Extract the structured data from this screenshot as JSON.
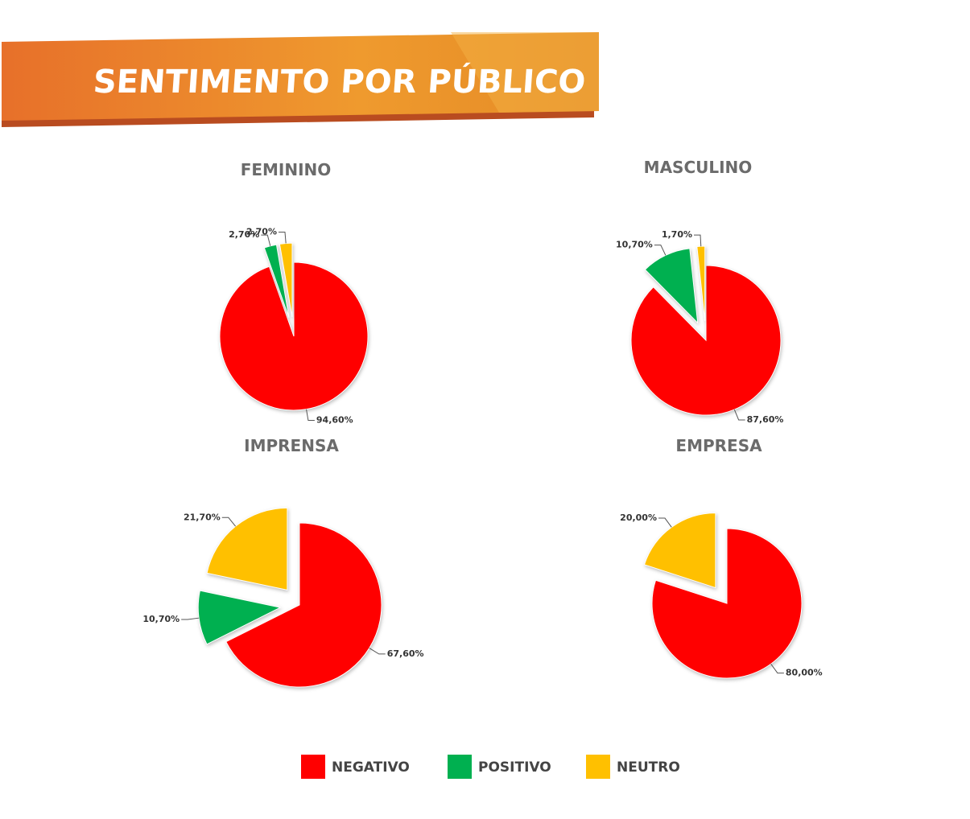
{
  "title": "SENTIMENTO POR PÚBLICO",
  "chart_data": [
    {
      "type": "pie",
      "title": "FEMININO",
      "categories": [
        "NEGATIVO",
        "POSITIVO",
        "NEUTRO"
      ],
      "values": [
        94.6,
        2.7,
        2.7
      ],
      "value_labels": [
        "94,60%",
        "2,70%",
        "2,70%"
      ],
      "colors": [
        "#ff0000",
        "#00b050",
        "#ffc000"
      ]
    },
    {
      "type": "pie",
      "title": "MASCULINO",
      "categories": [
        "NEGATIVO",
        "POSITIVO",
        "NEUTRO"
      ],
      "values": [
        87.6,
        10.7,
        1.7
      ],
      "value_labels": [
        "87,60%",
        "10,70%",
        "1,70%"
      ],
      "colors": [
        "#ff0000",
        "#00b050",
        "#ffc000"
      ]
    },
    {
      "type": "pie",
      "title": "IMPRENSA",
      "categories": [
        "NEGATIVO",
        "POSITIVO",
        "NEUTRO"
      ],
      "values": [
        67.6,
        10.7,
        21.7
      ],
      "value_labels": [
        "67,60%",
        "10,70%",
        "21,70%"
      ],
      "colors": [
        "#ff0000",
        "#00b050",
        "#ffc000"
      ]
    },
    {
      "type": "pie",
      "title": "EMPRESA",
      "categories": [
        "NEGATIVO",
        "NEUTRO"
      ],
      "values": [
        80,
        20
      ],
      "value_labels": [
        "80,00%",
        "20,00%"
      ],
      "colors": [
        "#ff0000",
        "#ffc000"
      ]
    }
  ]
}
